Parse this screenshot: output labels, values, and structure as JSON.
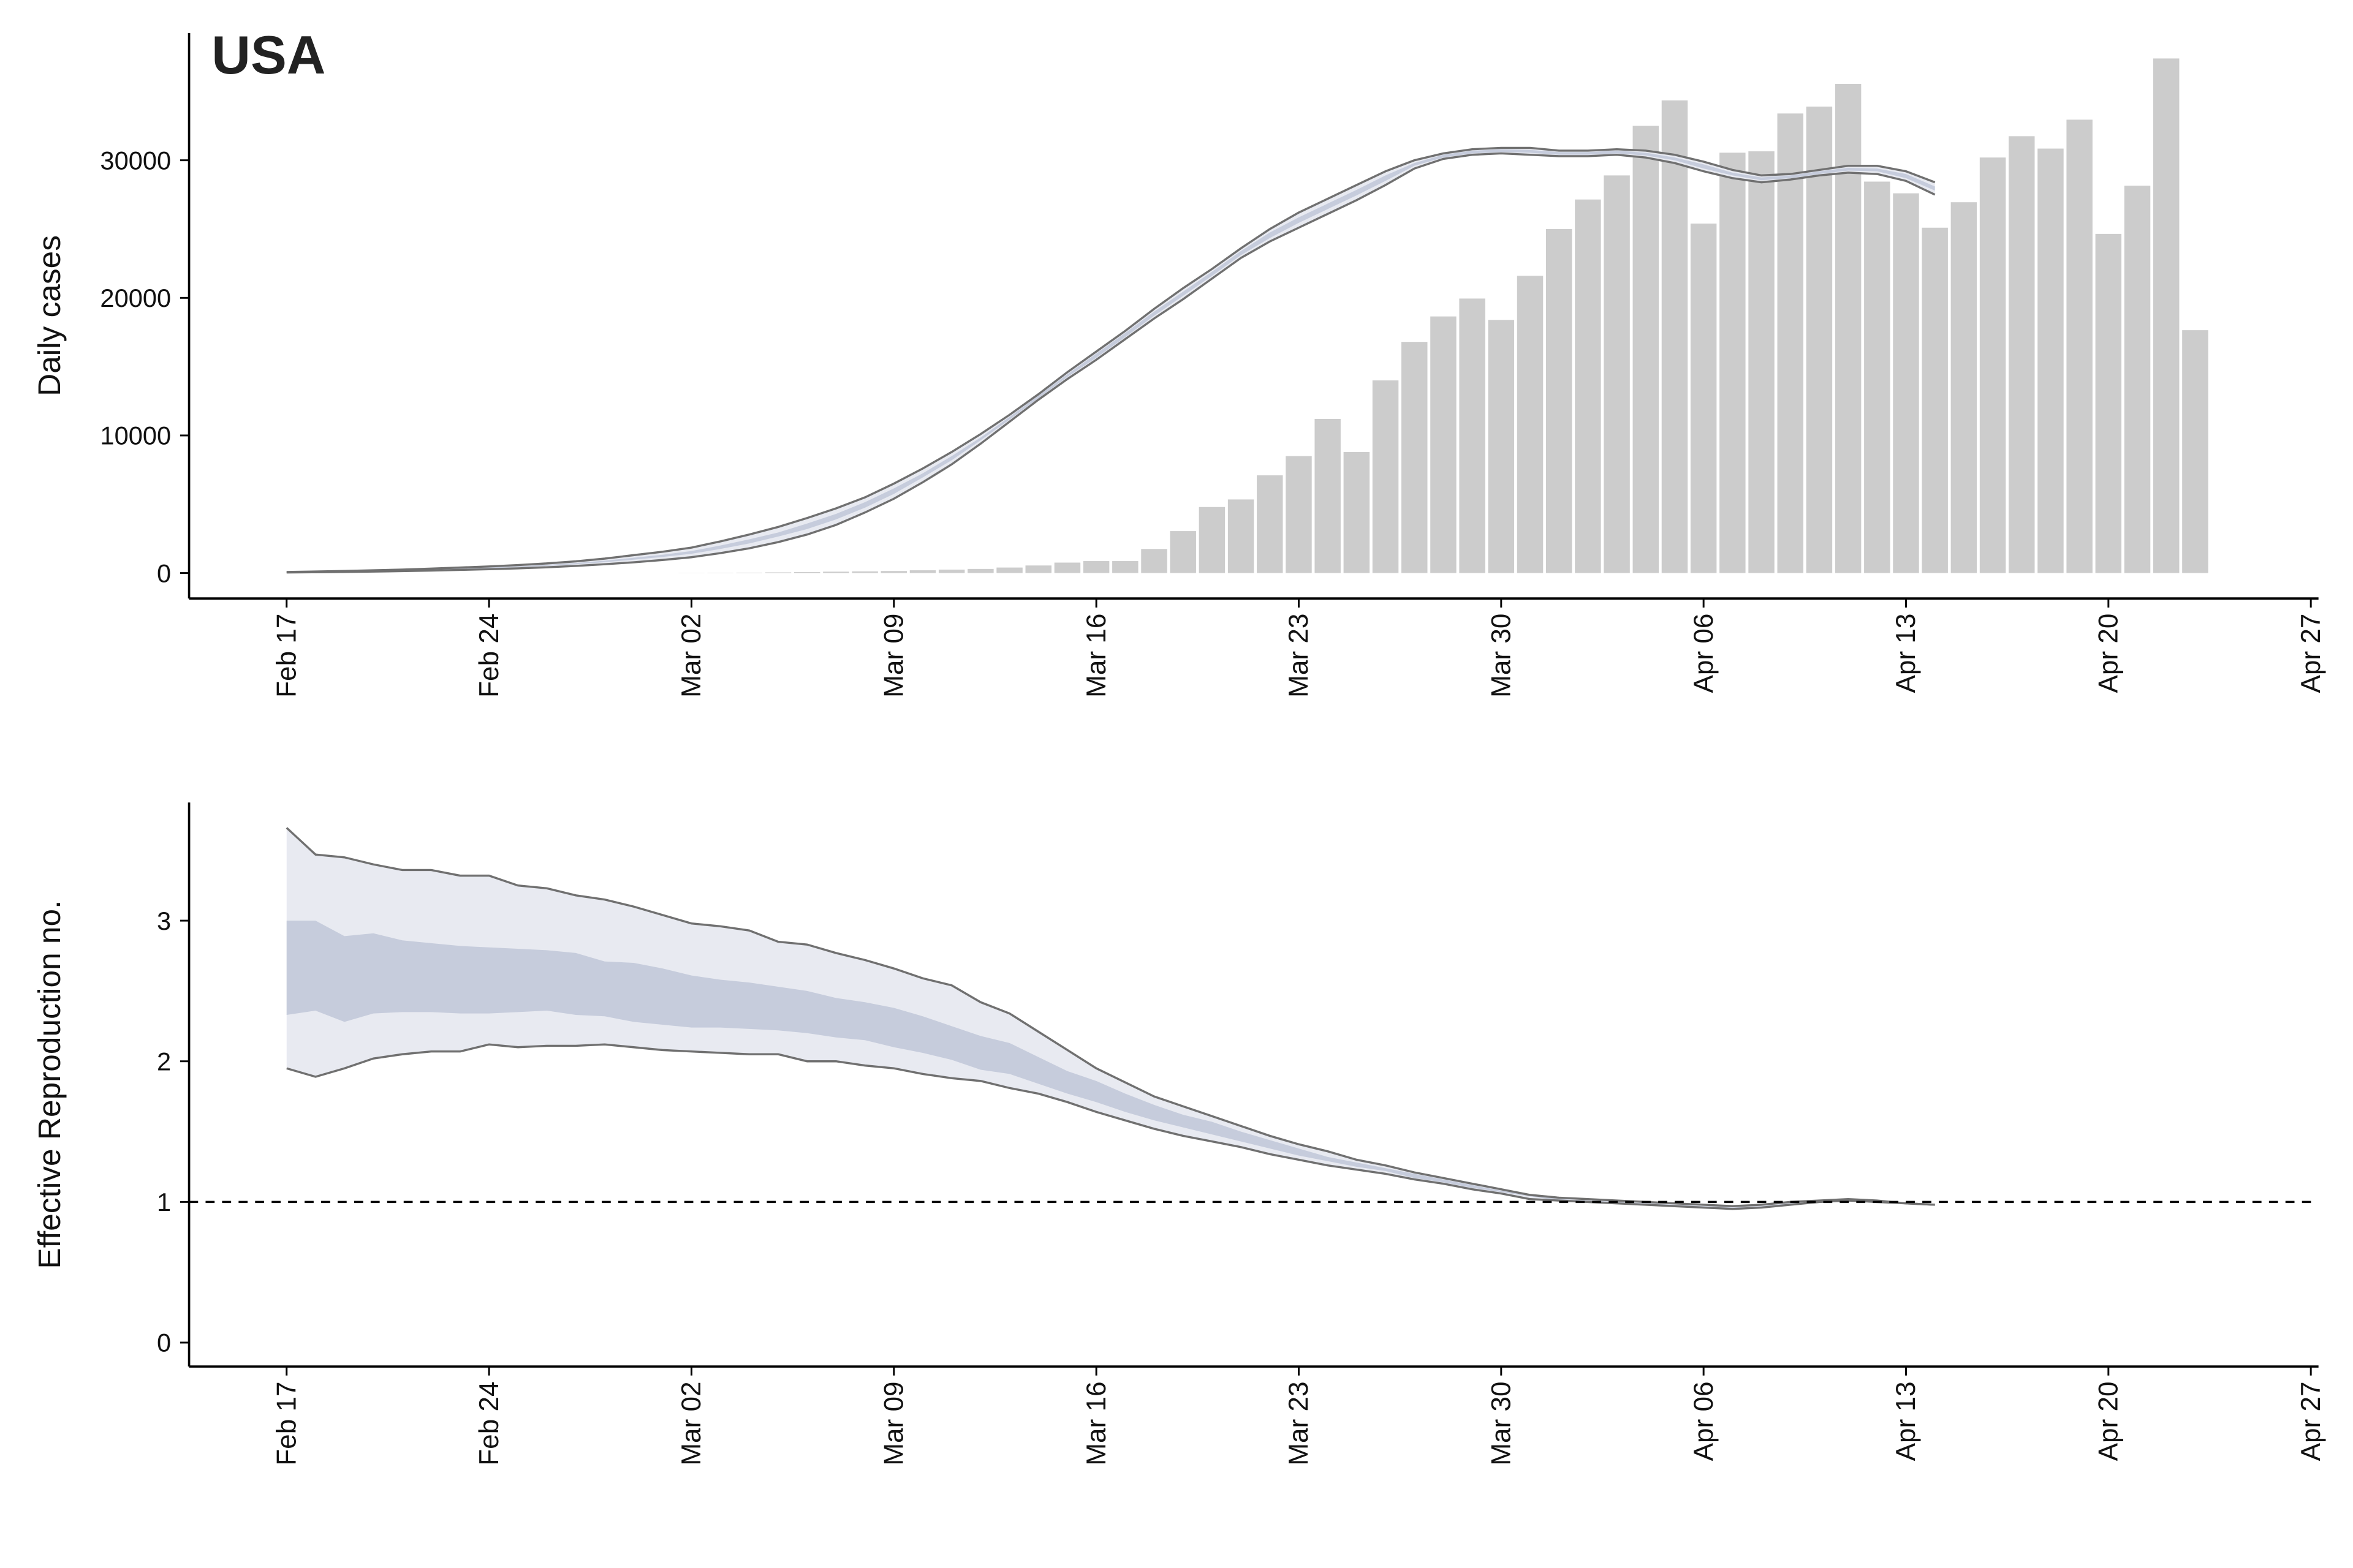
{
  "chart_data": [
    {
      "type": "bar",
      "title": "USA",
      "ylabel": "Daily cases",
      "categories": [
        "Feb 17",
        null,
        null,
        null,
        null,
        null,
        null,
        "Feb 24",
        null,
        null,
        null,
        null,
        null,
        null,
        "Mar 02",
        null,
        null,
        null,
        null,
        null,
        null,
        "Mar 09",
        null,
        null,
        null,
        null,
        null,
        null,
        "Mar 16",
        null,
        null,
        null,
        null,
        null,
        null,
        "Mar 23",
        null,
        null,
        null,
        null,
        null,
        null,
        "Mar 30",
        null,
        null,
        null,
        null,
        null,
        null,
        "Apr 06",
        null,
        null,
        null,
        null,
        null,
        null,
        "Apr 13",
        null,
        null,
        null,
        null,
        null,
        null,
        "Apr 20",
        null,
        null,
        null,
        null,
        null,
        null,
        "Apr 27"
      ],
      "values": [
        null,
        null,
        null,
        null,
        null,
        null,
        null,
        null,
        null,
        null,
        null,
        null,
        null,
        null,
        10,
        20,
        30,
        50,
        70,
        100,
        120,
        150,
        200,
        250,
        300,
        400,
        550,
        760,
        870,
        870,
        1750,
        3050,
        4800,
        5350,
        7100,
        8500,
        11200,
        8800,
        14000,
        16800,
        18650,
        19950,
        18400,
        21600,
        25000,
        27150,
        28900,
        32500,
        34350,
        25400,
        30550,
        30650,
        33400,
        33900,
        35550,
        28450,
        27600,
        25100,
        26950,
        30200,
        31750,
        30850,
        32950,
        24650,
        28150,
        37400,
        17650,
        null,
        null,
        null,
        null
      ],
      "color": "#cccccc",
      "bands": [
        {
          "color": "#e8eaf1",
          "line_color": "#707070",
          "lower": [
            40,
            60,
            80,
            110,
            140,
            180,
            230,
            280,
            340,
            420,
            520,
            640,
            780,
            950,
            1150,
            1450,
            1800,
            2250,
            2800,
            3500,
            4400,
            5400,
            6600,
            7900,
            9400,
            11000,
            12600,
            14100,
            15500,
            17000,
            18500,
            19900,
            21400,
            22900,
            24100,
            25100,
            26100,
            27100,
            28200,
            29400,
            30100,
            30400,
            30500,
            30400,
            30300,
            30300,
            30400,
            30200,
            29800,
            29200,
            28700,
            28400,
            28600,
            28900,
            29100,
            29000,
            28500,
            27500,
            null,
            null,
            null,
            null,
            null,
            null,
            null,
            null,
            null,
            null,
            null,
            null,
            null
          ],
          "upper": [
            80,
            110,
            150,
            200,
            250,
            320,
            400,
            480,
            580,
            700,
            850,
            1050,
            1300,
            1550,
            1850,
            2300,
            2800,
            3350,
            4000,
            4700,
            5500,
            6500,
            7600,
            8800,
            10100,
            11500,
            13000,
            14600,
            16100,
            17600,
            19200,
            20700,
            22100,
            23600,
            25000,
            26200,
            27200,
            28200,
            29200,
            30000,
            30500,
            30800,
            30900,
            30900,
            30700,
            30700,
            30800,
            30700,
            30400,
            29900,
            29300,
            28900,
            29000,
            29300,
            29600,
            29600,
            29200,
            28400,
            null,
            null,
            null,
            null,
            null,
            null,
            null,
            null,
            null,
            null,
            null,
            null,
            null
          ]
        },
        {
          "color": "#c6ccdc",
          "lower": [
            54,
            78,
            105,
            140,
            180,
            230,
            290,
            350,
            420,
            520,
            640,
            790,
            970,
            1170,
            1400,
            1750,
            2150,
            2650,
            3200,
            3900,
            4750,
            5750,
            6950,
            8200,
            9650,
            11150,
            12700,
            14250,
            15650,
            17150,
            18700,
            20150,
            21600,
            23100,
            24350,
            25450,
            26450,
            27450,
            28500,
            29600,
            30200,
            30500,
            30600,
            30550,
            30400,
            30400,
            30500,
            30350,
            30000,
            29400,
            28900,
            28550,
            28700,
            29000,
            29250,
            29200,
            28700,
            27800,
            null,
            null,
            null,
            null,
            null,
            null,
            null,
            null,
            null,
            null,
            null,
            null,
            null
          ],
          "upper": [
            66,
            92,
            125,
            170,
            210,
            270,
            340,
            410,
            500,
            600,
            730,
            900,
            1110,
            1330,
            1600,
            2000,
            2450,
            2950,
            3600,
            4300,
            5150,
            6150,
            7250,
            8500,
            9850,
            11350,
            12900,
            14450,
            15950,
            17450,
            19000,
            20450,
            21900,
            23400,
            24750,
            25850,
            26850,
            27850,
            28900,
            29800,
            30400,
            30700,
            30800,
            30750,
            30600,
            30600,
            30700,
            30550,
            30200,
            29700,
            29100,
            28750,
            28900,
            29200,
            29450,
            29400,
            29000,
            28100,
            null,
            null,
            null,
            null,
            null,
            null,
            null,
            null,
            null,
            null,
            null,
            null,
            null
          ]
        }
      ],
      "ylim": [
        -1850,
        39250
      ],
      "yticks": [
        0,
        10000,
        20000,
        30000
      ]
    },
    {
      "type": "band",
      "ylabel": "Effective Reproduction no.",
      "categories": [
        "Feb 17",
        null,
        null,
        null,
        null,
        null,
        null,
        "Feb 24",
        null,
        null,
        null,
        null,
        null,
        null,
        "Mar 02",
        null,
        null,
        null,
        null,
        null,
        null,
        "Mar 09",
        null,
        null,
        null,
        null,
        null,
        null,
        "Mar 16",
        null,
        null,
        null,
        null,
        null,
        null,
        "Mar 23",
        null,
        null,
        null,
        null,
        null,
        null,
        "Mar 30",
        null,
        null,
        null,
        null,
        null,
        null,
        "Apr 06",
        null,
        null,
        null,
        null,
        null,
        null,
        "Apr 13",
        null,
        null,
        null,
        null,
        null,
        null,
        "Apr 20",
        null,
        null,
        null,
        null,
        null,
        null,
        "Apr 27"
      ],
      "bands": [
        {
          "color": "#e8eaf1",
          "line_color": "#707070",
          "lower": [
            1.95,
            1.89,
            1.95,
            2.02,
            2.05,
            2.07,
            2.07,
            2.12,
            2.1,
            2.11,
            2.11,
            2.12,
            2.1,
            2.08,
            2.07,
            2.06,
            2.05,
            2.05,
            2.0,
            2.0,
            1.97,
            1.95,
            1.91,
            1.88,
            1.86,
            1.81,
            1.77,
            1.71,
            1.64,
            1.58,
            1.52,
            1.47,
            1.43,
            1.39,
            1.34,
            1.3,
            1.26,
            1.23,
            1.2,
            1.16,
            1.13,
            1.09,
            1.06,
            1.02,
            1.01,
            1.0,
            0.99,
            0.98,
            0.97,
            0.96,
            0.95,
            0.96,
            0.98,
            1.0,
            1.01,
            1.0,
            0.99,
            0.98,
            null,
            null,
            null,
            null,
            null,
            null,
            null,
            null,
            null,
            null,
            null,
            null,
            null
          ],
          "upper": [
            3.66,
            3.47,
            3.45,
            3.4,
            3.36,
            3.36,
            3.32,
            3.32,
            3.25,
            3.23,
            3.18,
            3.15,
            3.1,
            3.04,
            2.98,
            2.96,
            2.93,
            2.85,
            2.83,
            2.77,
            2.72,
            2.66,
            2.59,
            2.54,
            2.42,
            2.34,
            2.21,
            2.08,
            1.95,
            1.85,
            1.75,
            1.68,
            1.61,
            1.54,
            1.47,
            1.41,
            1.36,
            1.3,
            1.26,
            1.21,
            1.17,
            1.13,
            1.09,
            1.05,
            1.03,
            1.02,
            1.01,
            1.0,
            0.99,
            0.98,
            0.97,
            0.98,
            1.0,
            1.01,
            1.02,
            1.01,
            0.99,
            0.98,
            null,
            null,
            null,
            null,
            null,
            null,
            null,
            null,
            null,
            null,
            null,
            null,
            null
          ]
        },
        {
          "color": "#c6ccdc",
          "lower": [
            2.33,
            2.36,
            2.28,
            2.34,
            2.35,
            2.35,
            2.34,
            2.34,
            2.35,
            2.36,
            2.33,
            2.32,
            2.28,
            2.26,
            2.24,
            2.24,
            2.23,
            2.22,
            2.2,
            2.17,
            2.15,
            2.1,
            2.06,
            2.01,
            1.94,
            1.91,
            1.84,
            1.77,
            1.71,
            1.64,
            1.58,
            1.53,
            1.48,
            1.43,
            1.38,
            1.33,
            1.29,
            1.25,
            1.22,
            1.17,
            1.14,
            1.1,
            1.07,
            1.04,
            1.01,
            1.0,
            0.99,
            0.98,
            0.97,
            0.96,
            0.95,
            0.96,
            0.98,
            1.0,
            1.01,
            1.01,
            1.0,
            0.99,
            null,
            null,
            null,
            null,
            null,
            null,
            null,
            null,
            null,
            null,
            null,
            null,
            null
          ],
          "upper": [
            3.0,
            3.0,
            2.89,
            2.91,
            2.86,
            2.84,
            2.82,
            2.81,
            2.8,
            2.79,
            2.77,
            2.71,
            2.7,
            2.66,
            2.61,
            2.58,
            2.56,
            2.53,
            2.5,
            2.45,
            2.42,
            2.38,
            2.32,
            2.25,
            2.18,
            2.13,
            2.03,
            1.93,
            1.86,
            1.77,
            1.69,
            1.62,
            1.57,
            1.5,
            1.44,
            1.38,
            1.32,
            1.28,
            1.24,
            1.2,
            1.16,
            1.12,
            1.08,
            1.05,
            1.02,
            1.01,
            1.0,
            0.99,
            0.98,
            0.97,
            0.96,
            0.97,
            0.99,
            1.0,
            1.01,
            1.01,
            1.0,
            0.99,
            null,
            null,
            null,
            null,
            null,
            null,
            null,
            null,
            null,
            null,
            null,
            null,
            null
          ]
        }
      ],
      "hline": 1,
      "ylim": [
        -0.17,
        3.84
      ],
      "yticks": [
        0,
        1,
        2,
        3
      ]
    }
  ]
}
